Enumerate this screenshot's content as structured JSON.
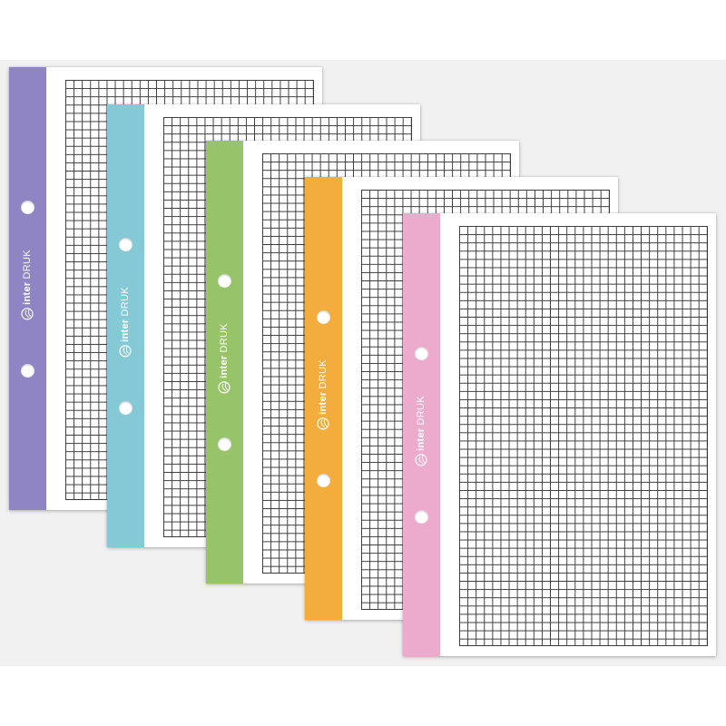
{
  "product": {
    "brand_name_part1": "inter",
    "brand_name_part2": "DRUK",
    "sheets": [
      {
        "color_name": "purple",
        "strip_color": "#8f85c4"
      },
      {
        "color_name": "blue",
        "strip_color": "#86c9d6"
      },
      {
        "color_name": "green",
        "strip_color": "#97c469"
      },
      {
        "color_name": "orange",
        "strip_color": "#f2ad3c"
      },
      {
        "color_name": "pink",
        "strip_color": "#ecabcc"
      }
    ],
    "paper_pattern": "squared-grid",
    "holes_per_sheet": 2
  }
}
